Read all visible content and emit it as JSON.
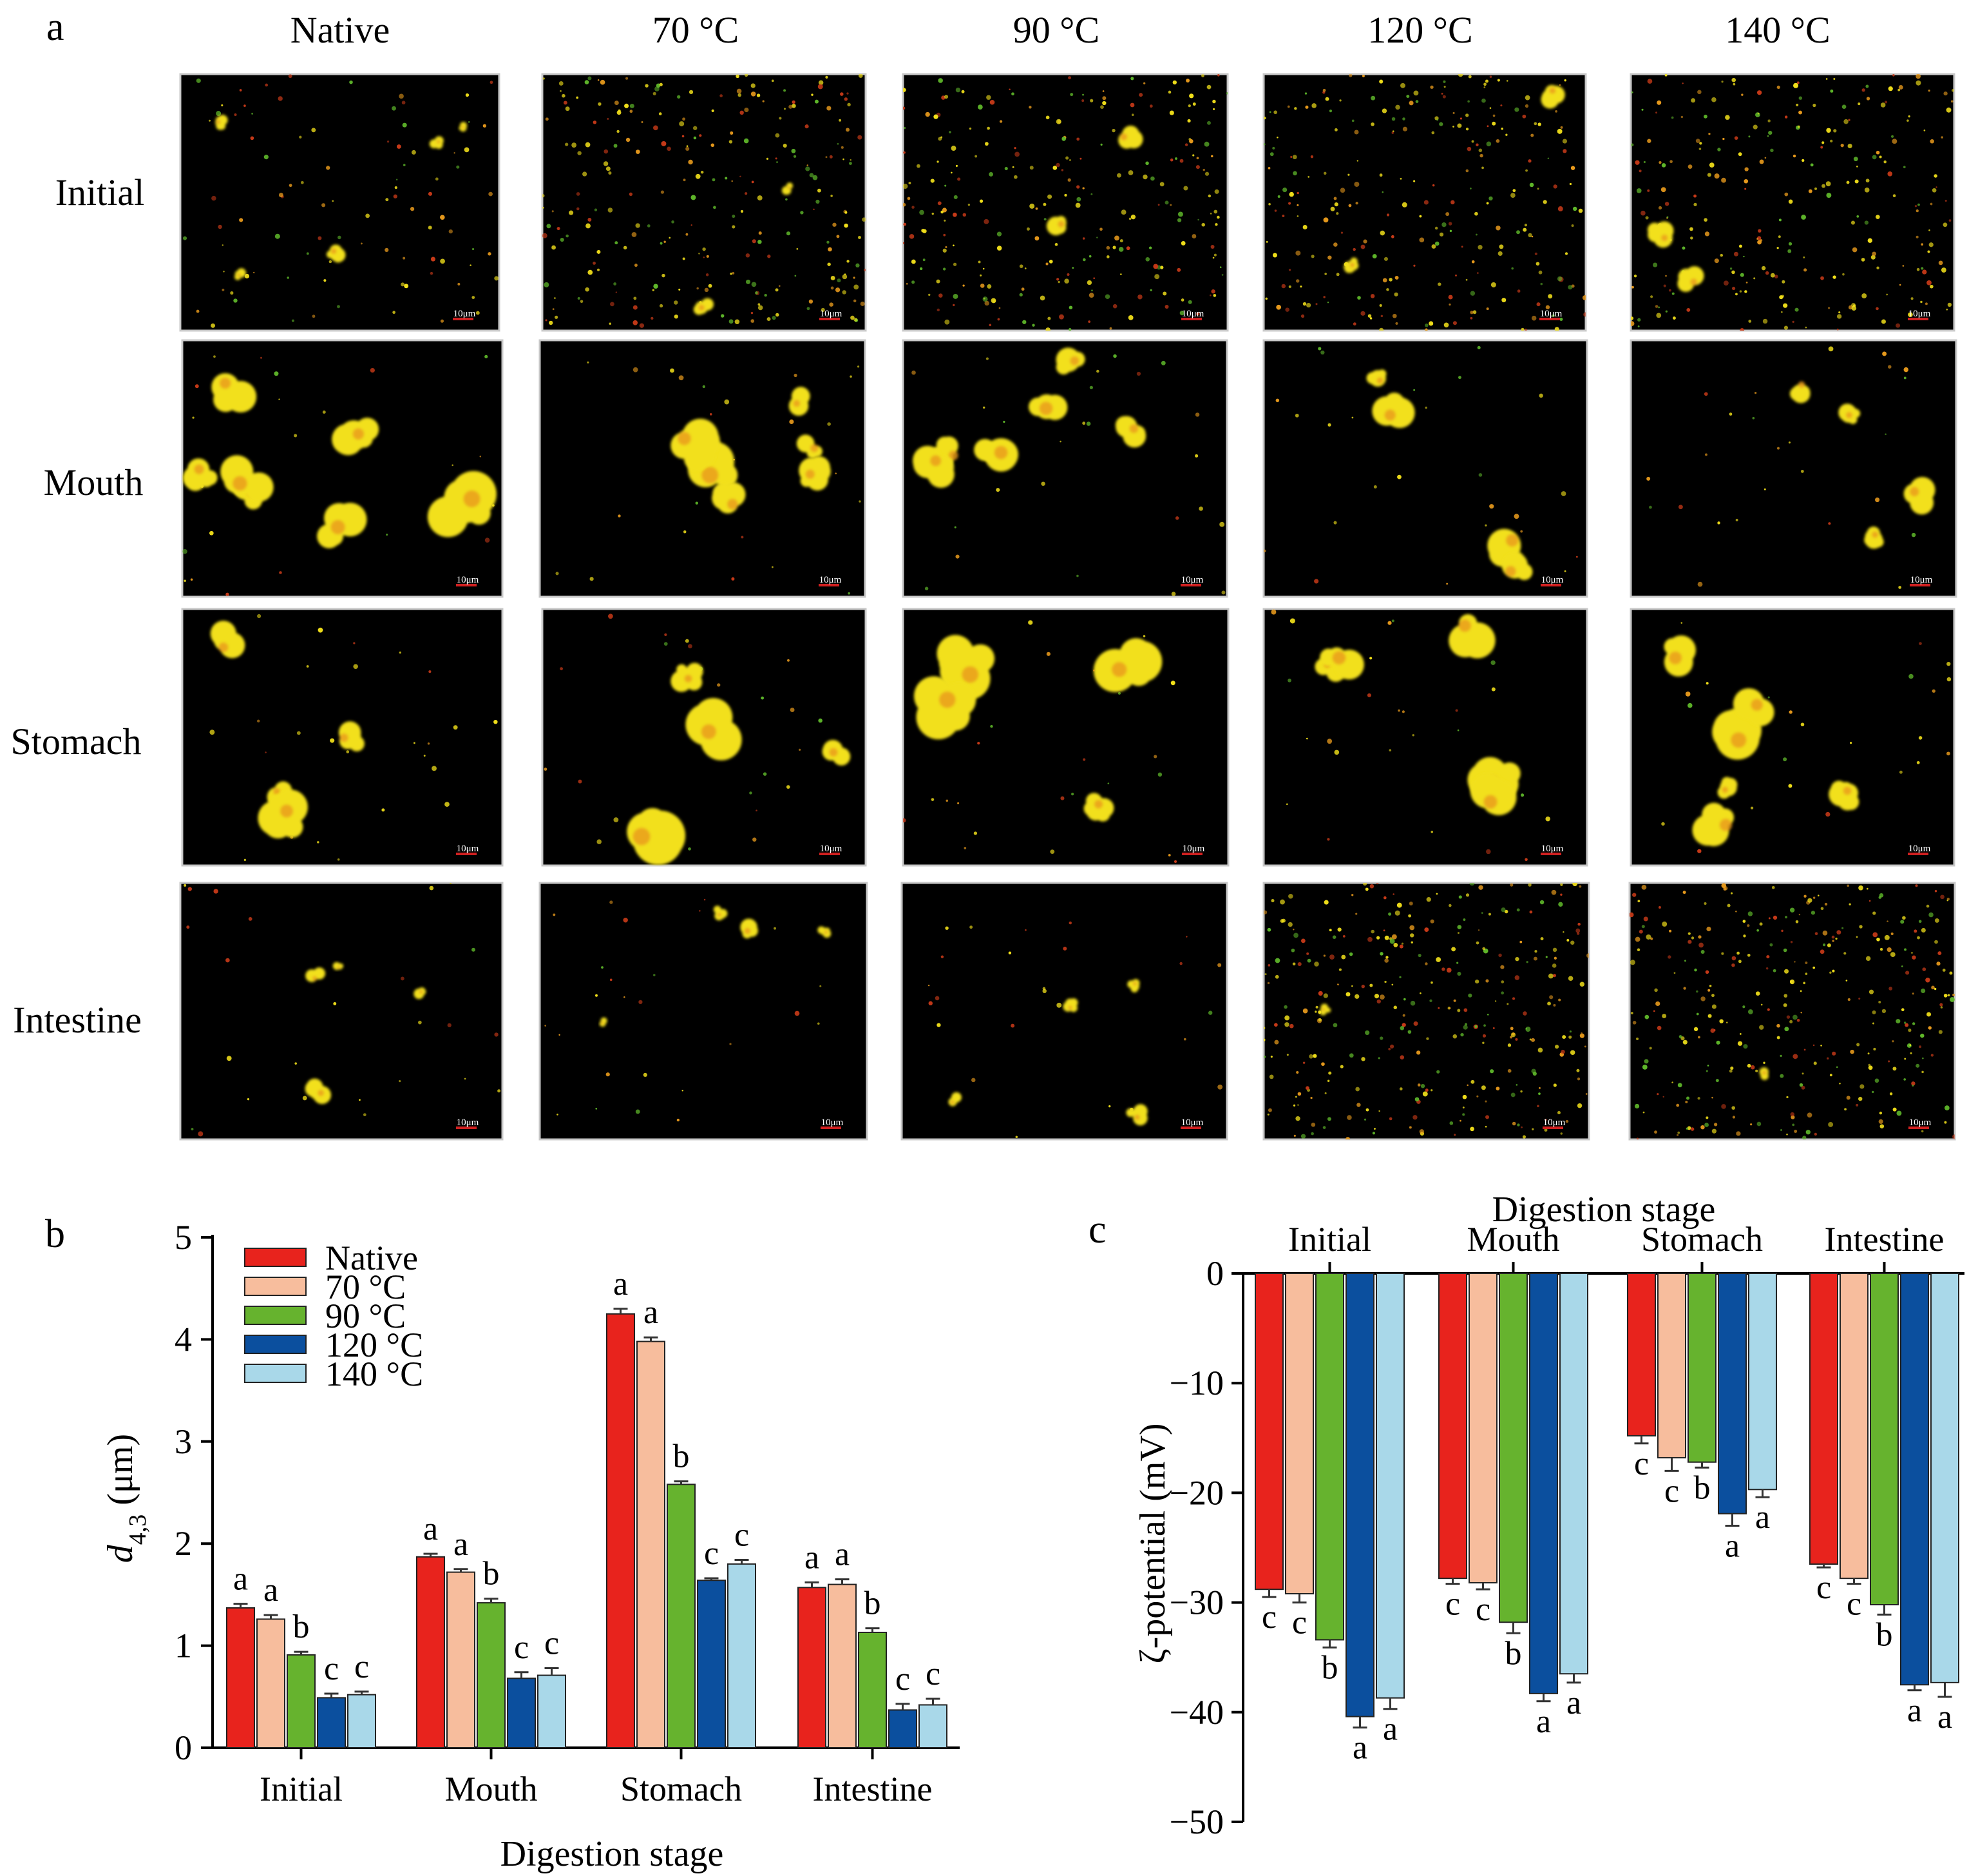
{
  "panel_a": {
    "letter": "a",
    "column_labels": [
      "Native",
      "70 °C",
      "90 °C",
      "120 °C",
      "140 °C"
    ],
    "row_labels": [
      "Initial",
      "Mouth",
      "Stomach",
      "Intestine"
    ],
    "scale_bar_label": "10μm",
    "colors": {
      "yellow": "#f2e01a",
      "orange": "#e89a1c",
      "green": "#5fb82a",
      "red": "#c83a18",
      "background": "#000000"
    }
  },
  "chart_data": [
    {
      "panel": "b",
      "type": "bar",
      "title": "",
      "xlabel": "Digestion stage",
      "ylabel": "d4,3 (μm)",
      "ylabel_main": "d",
      "ylabel_sub": "4,3",
      "ylabel_unit": " (μm)",
      "ylim": [
        0,
        5
      ],
      "yticks": [
        0,
        1,
        2,
        3,
        4,
        5
      ],
      "categories": [
        "Initial",
        "Mouth",
        "Stomach",
        "Intestine"
      ],
      "legend_position": "top-left",
      "series": [
        {
          "name": "Native",
          "color": "#e8231d",
          "values": [
            1.37,
            1.87,
            4.25,
            1.57
          ],
          "errors": [
            0.04,
            0.03,
            0.05,
            0.05
          ],
          "labels": [
            "a",
            "a",
            "a",
            "a"
          ]
        },
        {
          "name": "70 °C",
          "color": "#f7bd9d",
          "values": [
            1.26,
            1.72,
            3.98,
            1.6
          ],
          "errors": [
            0.04,
            0.03,
            0.04,
            0.05
          ],
          "labels": [
            "a",
            "a",
            "a",
            "a"
          ]
        },
        {
          "name": "90 °C",
          "color": "#66b32e",
          "values": [
            0.91,
            1.42,
            2.58,
            1.13
          ],
          "errors": [
            0.03,
            0.04,
            0.03,
            0.04
          ],
          "labels": [
            "b",
            "b",
            "b",
            "b"
          ]
        },
        {
          "name": "120 °C",
          "color": "#0b4f9e",
          "values": [
            0.49,
            0.68,
            1.64,
            0.37
          ],
          "errors": [
            0.04,
            0.06,
            0.02,
            0.06
          ],
          "labels": [
            "c",
            "c",
            "c",
            "c"
          ]
        },
        {
          "name": "140 °C",
          "color": "#a9d8e9",
          "values": [
            0.52,
            0.71,
            1.8,
            0.42
          ],
          "errors": [
            0.03,
            0.07,
            0.04,
            0.06
          ],
          "labels": [
            "c",
            "c",
            "c",
            "c"
          ]
        }
      ]
    },
    {
      "panel": "c",
      "type": "bar",
      "title": "",
      "xlabel": "Digestion stage",
      "ylabel": "ζ-potential (mV)",
      "ylim": [
        -50,
        0
      ],
      "yticks": [
        0,
        -10,
        -20,
        -30,
        -40,
        -50
      ],
      "ytick_labels": [
        "0",
        "−10",
        "−20",
        "−30",
        "−40",
        "−50"
      ],
      "xaxis_position": "top",
      "categories": [
        "Initial",
        "Mouth",
        "Stomach",
        "Intestine"
      ],
      "series": [
        {
          "name": "Native",
          "color": "#e8231d",
          "values": [
            -28.8,
            -27.8,
            -14.8,
            -26.5
          ],
          "errors": [
            0.7,
            0.5,
            0.7,
            0.3
          ],
          "labels": [
            "c",
            "c",
            "c",
            "c"
          ]
        },
        {
          "name": "70 °C",
          "color": "#f7bd9d",
          "values": [
            -29.2,
            -28.2,
            -16.8,
            -27.8
          ],
          "errors": [
            0.8,
            0.6,
            1.2,
            0.5
          ],
          "labels": [
            "c",
            "c",
            "c",
            "c"
          ]
        },
        {
          "name": "90 °C",
          "color": "#66b32e",
          "values": [
            -33.4,
            -31.8,
            -17.2,
            -30.2
          ],
          "errors": [
            0.7,
            1.0,
            0.5,
            0.9
          ],
          "labels": [
            "b",
            "b",
            "b",
            "b"
          ]
        },
        {
          "name": "120 °C",
          "color": "#0b4f9e",
          "values": [
            -40.4,
            -38.3,
            -21.9,
            -37.5
          ],
          "errors": [
            1.0,
            0.7,
            1.1,
            0.5
          ],
          "labels": [
            "a",
            "a",
            "a",
            "a"
          ]
        },
        {
          "name": "140 °C",
          "color": "#a9d8e9",
          "values": [
            -38.7,
            -36.5,
            -19.7,
            -37.3
          ],
          "errors": [
            1.0,
            0.8,
            0.7,
            1.3
          ],
          "labels": [
            "a",
            "a",
            "a",
            "a"
          ]
        }
      ]
    }
  ]
}
